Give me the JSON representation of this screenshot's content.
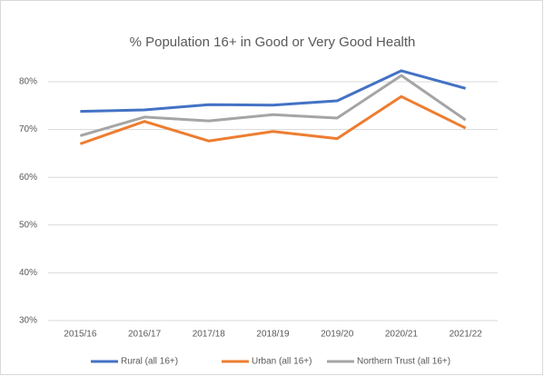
{
  "chart_data": {
    "type": "line",
    "title": "% Population 16+ in Good or Very Good Health",
    "categories": [
      "2015/16",
      "2016/17",
      "2017/18",
      "2018/19",
      "2019/20",
      "2020/21",
      "2021/22"
    ],
    "series": [
      {
        "name": "Rural (all 16+)",
        "color": "#4472c4",
        "values": [
          73.8,
          74.1,
          75.2,
          75.1,
          76.0,
          82.3,
          78.6
        ]
      },
      {
        "name": "Urban (all 16+)",
        "color": "#ed7d31",
        "values": [
          67.0,
          71.7,
          67.6,
          69.6,
          68.1,
          76.9,
          70.3
        ]
      },
      {
        "name": "Northern Trust (all 16+)",
        "color": "#a5a5a5",
        "values": [
          68.7,
          72.6,
          71.8,
          73.1,
          72.4,
          81.3,
          72.0
        ]
      }
    ],
    "ylim": [
      30,
      85
    ],
    "yticks": [
      {
        "value": 30,
        "label": "30%"
      },
      {
        "value": 40,
        "label": "40%"
      },
      {
        "value": 50,
        "label": "50%"
      },
      {
        "value": 60,
        "label": "60%"
      },
      {
        "value": 70,
        "label": "70%"
      },
      {
        "value": 80,
        "label": "80%"
      }
    ],
    "grid": true,
    "legend": "bottom"
  }
}
